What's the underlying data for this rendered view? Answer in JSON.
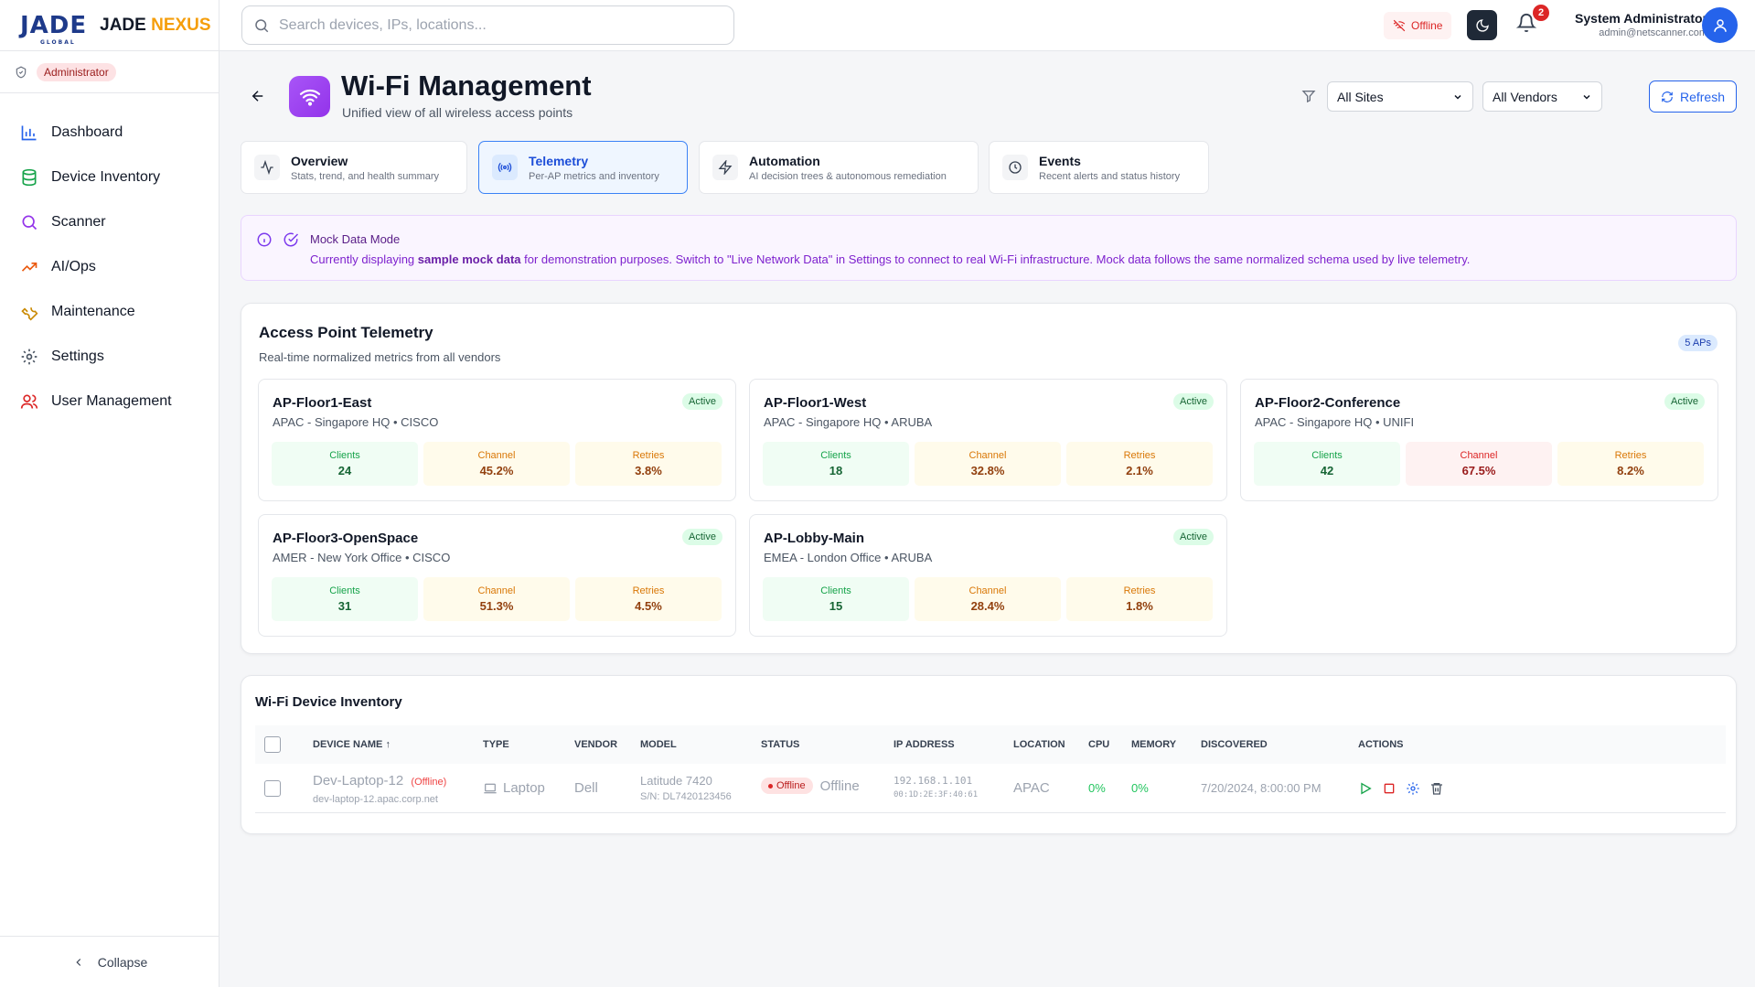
{
  "brand": {
    "logo_text": "JADE",
    "logo_sub": "GLOBAL",
    "name_a": "JADE",
    "name_b": "NEXUS"
  },
  "sidebar": {
    "role": "Administrator",
    "items": [
      {
        "label": "Dashboard",
        "icon": "bar-chart-icon",
        "color": "#2563eb"
      },
      {
        "label": "Device Inventory",
        "icon": "database-icon",
        "color": "#16a34a"
      },
      {
        "label": "Scanner",
        "icon": "search-icon",
        "color": "#9333ea"
      },
      {
        "label": "AI/Ops",
        "icon": "trending-up-icon",
        "color": "#ea580c"
      },
      {
        "label": "Maintenance",
        "icon": "wrench-icon",
        "color": "#ca8a04"
      },
      {
        "label": "Settings",
        "icon": "gear-icon",
        "color": "#4b5563"
      },
      {
        "label": "User Management",
        "icon": "users-icon",
        "color": "#dc2626"
      }
    ],
    "collapse_label": "Collapse"
  },
  "topbar": {
    "search_placeholder": "Search devices, IPs, locations...",
    "status": "Offline",
    "notifications": "2",
    "user_name": "System Administrator",
    "user_email": "admin@netscanner.com"
  },
  "page": {
    "title": "Wi-Fi Management",
    "subtitle": "Unified view of all wireless access points",
    "site_filter": "All Sites",
    "vendor_filter": "All Vendors",
    "refresh_label": "Refresh"
  },
  "tabs": [
    {
      "title": "Overview",
      "desc": "Stats, trend, and health summary"
    },
    {
      "title": "Telemetry",
      "desc": "Per-AP metrics and inventory"
    },
    {
      "title": "Automation",
      "desc": "AI decision trees & autonomous remediation"
    },
    {
      "title": "Events",
      "desc": "Recent alerts and status history"
    }
  ],
  "mock": {
    "title": "Mock Data Mode",
    "text_a": "Currently displaying ",
    "text_b": "sample mock data",
    "text_c": " for demonstration purposes. Switch to \"Live Network Data\" in Settings to connect to real Wi-Fi infrastructure. Mock data follows the same normalized schema used by live telemetry."
  },
  "telemetry": {
    "title": "Access Point Telemetry",
    "subtitle": "Real-time normalized metrics from all vendors",
    "count": "5 APs",
    "labels": {
      "clients": "Clients",
      "channel": "Channel",
      "retries": "Retries"
    },
    "aps": [
      {
        "name": "AP-Floor1-East",
        "loc": "APAC - Singapore HQ • CISCO",
        "status": "Active",
        "clients": "24",
        "channel": "45.2%",
        "retries": "3.8%"
      },
      {
        "name": "AP-Floor1-West",
        "loc": "APAC - Singapore HQ • ARUBA",
        "status": "Active",
        "clients": "18",
        "channel": "32.8%",
        "retries": "2.1%"
      },
      {
        "name": "AP-Floor2-Conference",
        "loc": "APAC - Singapore HQ • UNIFI",
        "status": "Active",
        "clients": "42",
        "channel": "67.5%",
        "retries": "8.2%"
      },
      {
        "name": "AP-Floor3-OpenSpace",
        "loc": "AMER - New York Office • CISCO",
        "status": "Active",
        "clients": "31",
        "channel": "51.3%",
        "retries": "4.5%"
      },
      {
        "name": "AP-Lobby-Main",
        "loc": "EMEA - London Office • ARUBA",
        "status": "Active",
        "clients": "15",
        "channel": "28.4%",
        "retries": "1.8%"
      }
    ]
  },
  "inventory": {
    "title": "Wi-Fi Device Inventory",
    "headers": [
      "DEVICE NAME",
      "TYPE",
      "VENDOR",
      "MODEL",
      "STATUS",
      "IP ADDRESS",
      "LOCATION",
      "CPU",
      "MEMORY",
      "DISCOVERED",
      "ACTIONS"
    ],
    "row": {
      "name": "Dev-Laptop-12",
      "name_tag": "(Offline)",
      "host": "dev-laptop-12.apac.corp.net",
      "type": "Laptop",
      "vendor": "Dell",
      "model": "Latitude 7420",
      "serial": "S/N: DL7420123456",
      "status_badge": "Offline",
      "status_text": "Offline",
      "ip": "192.168.1.101",
      "mac": "00:1D:2E:3F:40:61",
      "location": "APAC",
      "cpu": "0%",
      "memory": "0%",
      "discovered": "7/20/2024, 8:00:00 PM"
    }
  }
}
